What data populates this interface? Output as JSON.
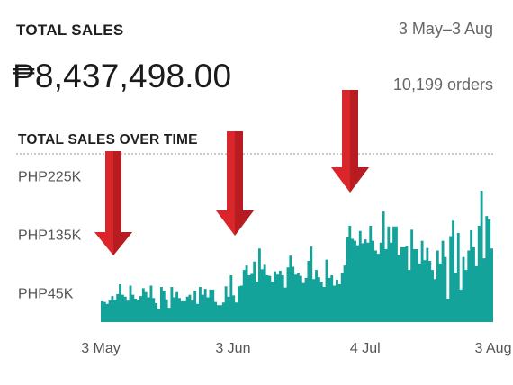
{
  "header": {
    "title": "TOTAL SALES",
    "date_range": "3 May–3 Aug",
    "total_value": "₱8,437,498.00",
    "orders": "10,199 orders"
  },
  "chart_data": {
    "type": "area",
    "title": "TOTAL SALES OVER TIME",
    "color": "#14a39a",
    "xlabel": "",
    "ylabel": "",
    "y_ticks": [
      45000,
      135000,
      225000
    ],
    "y_tick_labels": [
      "PHP45K",
      "PHP135K",
      "PHP225K"
    ],
    "x_ticks": [
      "2023-05-03",
      "2023-06-03",
      "2023-07-04",
      "2023-08-03"
    ],
    "x_tick_labels": [
      "3 May",
      "3 Jun",
      "4 Jul",
      "3 Aug"
    ],
    "xlim": [
      "2023-05-03",
      "2023-08-03"
    ],
    "ylim": [
      0,
      260000
    ],
    "series": [
      {
        "values": [
          32000,
          31000,
          28000,
          33000,
          40000,
          34000,
          43000,
          58000,
          42000,
          39000,
          33000,
          56000,
          42000,
          36000,
          34000,
          40000,
          52000,
          46000,
          38000,
          56000,
          37000,
          29000,
          20000,
          54000,
          48000,
          35000,
          22000,
          54000,
          38000,
          46000,
          37000,
          32000,
          32000,
          39000,
          42000,
          33000,
          48000,
          28000,
          54000,
          42000,
          51000,
          38000,
          50000,
          50000,
          31000,
          26000,
          26000,
          30000,
          55000,
          39000,
          72000,
          41000,
          30000,
          55000,
          56000,
          80000,
          87000,
          72000,
          74000,
          93000,
          62000,
          113000,
          81000,
          88000,
          72000,
          71000,
          62000,
          78000,
          73000,
          79000,
          72000,
          53000,
          84000,
          102000,
          85000,
          73000,
          76000,
          71000,
          60000,
          68000,
          94000,
          116000,
          66000,
          80000,
          69000,
          62000,
          54000,
          96000,
          68000,
          72000,
          56000,
          65000,
          58000,
          75000,
          87000,
          130000,
          148000,
          128000,
          125000,
          118000,
          140000,
          121000,
          127000,
          122000,
          148000,
          125000,
          110000,
          105000,
          122000,
          170000,
          112000,
          147000,
          122000,
          147000,
          147000,
          103000,
          115000,
          115000,
          117000,
          80000,
          142000,
          112000,
          112000,
          90000,
          125000,
          95000,
          114000,
          94000,
          80000,
          66000,
          110000,
          90000,
          125000,
          100000,
          36000,
          132000,
          156000,
          76000,
          137000,
          50000,
          100000,
          80000,
          110000,
          141000,
          115000,
          86000,
          148000,
          202000,
          98000,
          163000,
          158000,
          113000
        ]
      }
    ]
  }
}
